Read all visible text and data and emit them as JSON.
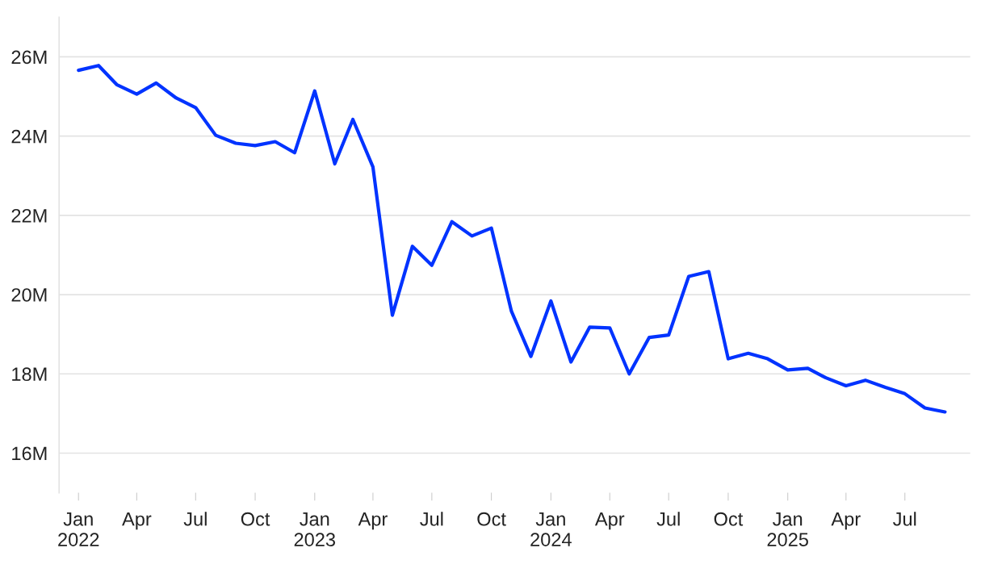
{
  "chart_data": {
    "type": "line",
    "x": [
      "2022-01",
      "2022-02",
      "2022-03",
      "2022-04",
      "2022-05",
      "2022-06",
      "2022-07",
      "2022-08",
      "2022-09",
      "2022-10",
      "2022-11",
      "2022-12",
      "2023-01",
      "2023-02",
      "2023-03",
      "2023-04",
      "2023-05",
      "2023-06",
      "2023-07",
      "2023-08",
      "2023-09",
      "2023-10",
      "2023-11",
      "2023-12",
      "2024-01",
      "2024-02",
      "2024-03",
      "2024-04",
      "2024-05",
      "2024-06",
      "2024-07",
      "2024-08",
      "2024-09",
      "2024-10",
      "2024-11",
      "2024-12",
      "2025-01",
      "2025-02",
      "2025-03",
      "2025-04",
      "2025-05",
      "2025-06",
      "2025-07",
      "2025-08",
      "2025-09"
    ],
    "series": [
      {
        "color": "#0033ff",
        "values": [
          25.66,
          25.78,
          25.3,
          25.06,
          25.34,
          24.96,
          24.72,
          24.02,
          23.82,
          23.76,
          23.86,
          23.58,
          25.14,
          23.3,
          24.42,
          23.22,
          19.48,
          21.22,
          20.74,
          21.84,
          21.48,
          21.68,
          19.58,
          18.44,
          19.84,
          18.3,
          19.18,
          19.16,
          18.0,
          18.92,
          18.98,
          20.46,
          20.58,
          18.38,
          18.52,
          18.38,
          18.1,
          18.14,
          17.9,
          17.7,
          17.84,
          17.66,
          17.5,
          17.14,
          17.04
        ]
      }
    ],
    "ylim": [
      15.0,
      27.0
    ],
    "yticks": [
      {
        "value": 16,
        "label": "16M"
      },
      {
        "value": 18,
        "label": "18M"
      },
      {
        "value": 20,
        "label": "20M"
      },
      {
        "value": 22,
        "label": "22M"
      },
      {
        "value": 24,
        "label": "24M"
      },
      {
        "value": 26,
        "label": "26M"
      }
    ],
    "xlim": [
      "2021-12-02",
      "2025-10-10"
    ],
    "xticks": [
      {
        "value": "2022-01",
        "label": "Jan\n2022"
      },
      {
        "value": "2022-04",
        "label": "Apr"
      },
      {
        "value": "2022-07",
        "label": "Jul"
      },
      {
        "value": "2022-10",
        "label": "Oct"
      },
      {
        "value": "2023-01",
        "label": "Jan\n2023"
      },
      {
        "value": "2023-04",
        "label": "Apr"
      },
      {
        "value": "2023-07",
        "label": "Jul"
      },
      {
        "value": "2023-10",
        "label": "Oct"
      },
      {
        "value": "2024-01",
        "label": "Jan\n2024"
      },
      {
        "value": "2024-04",
        "label": "Apr"
      },
      {
        "value": "2024-07",
        "label": "Jul"
      },
      {
        "value": "2024-10",
        "label": "Oct"
      },
      {
        "value": "2025-01",
        "label": "Jan\n2025"
      },
      {
        "value": "2025-04",
        "label": "Apr"
      },
      {
        "value": "2025-07",
        "label": "Jul"
      }
    ],
    "grid": "y",
    "marker": "none",
    "line_style": "solid"
  }
}
